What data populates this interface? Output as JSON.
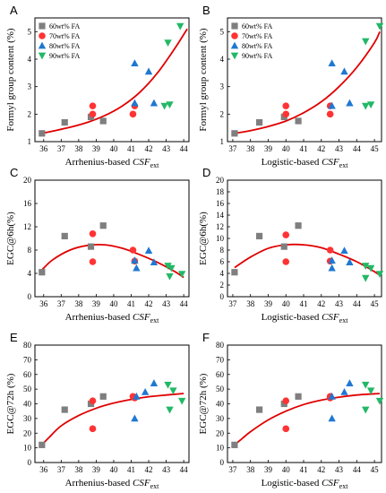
{
  "chart_data": [
    {
      "panel": "A",
      "type": "scatter",
      "ylabel": "Formyl group content (%)",
      "xlabel_main": "Arrhenius-based ",
      "xlabel_italic": "CSF",
      "xlabel_sub": "ext",
      "xlim": [
        35.5,
        44.3
      ],
      "ylim": [
        1,
        5.5
      ],
      "xticks": [
        36,
        37,
        38,
        39,
        40,
        41,
        42,
        43,
        44
      ],
      "yticks": [
        1,
        2,
        3,
        4,
        5
      ],
      "legend": [
        "60wt% FA",
        "70wt% FA",
        "80wt% FA",
        "90wt% FA"
      ],
      "series": [
        {
          "name": "60wt% FA",
          "marker": "square",
          "color": "#7f7f7f",
          "points": [
            [
              35.9,
              1.3
            ],
            [
              37.2,
              1.7
            ],
            [
              38.7,
              1.9
            ],
            [
              39.4,
              1.75
            ]
          ]
        },
        {
          "name": "70wt% FA",
          "marker": "circle",
          "color": "#ff3333",
          "points": [
            [
              38.8,
              2.3
            ],
            [
              38.8,
              2.0
            ],
            [
              41.1,
              2.0
            ],
            [
              41.2,
              2.3
            ]
          ]
        },
        {
          "name": "80wt% FA",
          "marker": "triangle-up",
          "color": "#1f78d1",
          "points": [
            [
              41.2,
              3.85
            ],
            [
              41.2,
              2.4
            ],
            [
              42.0,
              3.55
            ],
            [
              42.3,
              2.4
            ]
          ]
        },
        {
          "name": "90wt% FA",
          "marker": "triangle-down",
          "color": "#22b866",
          "points": [
            [
              43.1,
              4.6
            ],
            [
              43.8,
              5.2
            ],
            [
              42.9,
              2.3
            ],
            [
              43.2,
              2.35
            ]
          ]
        }
      ],
      "fit": {
        "color": "#e00000",
        "x": [
          35.9,
          36.5,
          37.5,
          38.5,
          39.5,
          40.5,
          41.5,
          42.5,
          43.5,
          44.2
        ],
        "y": [
          1.3,
          1.38,
          1.52,
          1.7,
          1.95,
          2.3,
          2.8,
          3.5,
          4.4,
          5.1
        ]
      }
    },
    {
      "panel": "B",
      "type": "scatter",
      "ylabel": "Formyl group content (%)",
      "xlabel_main": "Logistic-based ",
      "xlabel_italic": "CSF",
      "xlabel_sub": "ext",
      "xlim": [
        36.7,
        45.4
      ],
      "ylim": [
        1,
        5.5
      ],
      "xticks": [
        37,
        38,
        39,
        40,
        41,
        42,
        43,
        44,
        45
      ],
      "yticks": [
        1,
        2,
        3,
        4,
        5
      ],
      "legend": [
        "60wt% FA",
        "70wt% FA",
        "80wt% FA",
        "90wt% FA"
      ],
      "series": [
        {
          "name": "60wt% FA",
          "marker": "square",
          "color": "#7f7f7f",
          "points": [
            [
              37.1,
              1.3
            ],
            [
              38.5,
              1.7
            ],
            [
              39.9,
              1.9
            ],
            [
              40.7,
              1.75
            ]
          ]
        },
        {
          "name": "70wt% FA",
          "marker": "circle",
          "color": "#ff3333",
          "points": [
            [
              40.0,
              2.3
            ],
            [
              40.0,
              2.0
            ],
            [
              42.5,
              2.0
            ],
            [
              42.5,
              2.3
            ]
          ]
        },
        {
          "name": "80wt% FA",
          "marker": "triangle-up",
          "color": "#1f78d1",
          "points": [
            [
              42.6,
              3.85
            ],
            [
              42.6,
              2.3
            ],
            [
              43.3,
              3.55
            ],
            [
              43.6,
              2.4
            ]
          ]
        },
        {
          "name": "90wt% FA",
          "marker": "triangle-down",
          "color": "#22b866",
          "points": [
            [
              44.5,
              4.65
            ],
            [
              45.3,
              5.2
            ],
            [
              44.5,
              2.3
            ],
            [
              44.8,
              2.35
            ]
          ]
        }
      ],
      "fit": {
        "color": "#e00000",
        "x": [
          37.1,
          38,
          39,
          40,
          41,
          42,
          43,
          44,
          45,
          45.3
        ],
        "y": [
          1.3,
          1.4,
          1.55,
          1.75,
          2.05,
          2.45,
          3.0,
          3.7,
          4.6,
          5.0
        ]
      }
    },
    {
      "panel": "C",
      "type": "scatter",
      "ylabel": "EGC@6h(%)",
      "xlabel_main": "Arrhenius-based ",
      "xlabel_italic": "CSF",
      "xlabel_sub": "ext",
      "xlim": [
        35.5,
        44.3
      ],
      "ylim": [
        0,
        20
      ],
      "xticks": [
        36,
        37,
        38,
        39,
        40,
        41,
        42,
        43,
        44
      ],
      "yticks": [
        0,
        4,
        8,
        12,
        16,
        20
      ],
      "series": [
        {
          "name": "60wt% FA",
          "marker": "square",
          "color": "#7f7f7f",
          "points": [
            [
              35.9,
              4.2
            ],
            [
              37.2,
              10.4
            ],
            [
              38.7,
              8.6
            ],
            [
              39.4,
              12.2
            ]
          ]
        },
        {
          "name": "70wt% FA",
          "marker": "circle",
          "color": "#ff3333",
          "points": [
            [
              38.8,
              10.8
            ],
            [
              38.8,
              6.0
            ],
            [
              41.1,
              8.0
            ],
            [
              41.2,
              6.1
            ]
          ]
        },
        {
          "name": "80wt% FA",
          "marker": "triangle-up",
          "color": "#1f78d1",
          "points": [
            [
              41.2,
              6.2
            ],
            [
              41.3,
              4.9
            ],
            [
              42.0,
              7.9
            ],
            [
              42.3,
              5.9
            ]
          ]
        },
        {
          "name": "90wt% FA",
          "marker": "triangle-down",
          "color": "#22b866",
          "points": [
            [
              43.1,
              5.3
            ],
            [
              43.3,
              4.9
            ],
            [
              43.2,
              3.5
            ],
            [
              43.9,
              3.9
            ]
          ]
        }
      ],
      "fit": {
        "color": "#e00000",
        "x": [
          35.9,
          36.5,
          37.5,
          38.5,
          39.5,
          40.5,
          41.5,
          42.5,
          43.5,
          44.0
        ],
        "y": [
          4.6,
          6.3,
          8.0,
          8.8,
          8.9,
          8.3,
          7.2,
          5.9,
          4.3,
          3.3
        ]
      }
    },
    {
      "panel": "D",
      "type": "scatter",
      "ylabel": "EGC@6h(%)",
      "xlabel_main": "Logistic-based ",
      "xlabel_italic": "CSF",
      "xlabel_sub": "ext",
      "xlim": [
        36.7,
        45.4
      ],
      "ylim": [
        0,
        20
      ],
      "xticks": [
        37,
        38,
        39,
        40,
        41,
        42,
        43,
        44,
        45
      ],
      "yticks": [
        0,
        2,
        4,
        6,
        8,
        10,
        12,
        14,
        16,
        18,
        20
      ],
      "series": [
        {
          "name": "60wt% FA",
          "marker": "square",
          "color": "#7f7f7f",
          "points": [
            [
              37.1,
              4.2
            ],
            [
              38.5,
              10.4
            ],
            [
              39.9,
              8.6
            ],
            [
              40.7,
              12.2
            ]
          ]
        },
        {
          "name": "70wt% FA",
          "marker": "circle",
          "color": "#ff3333",
          "points": [
            [
              40.0,
              10.6
            ],
            [
              40.0,
              6.0
            ],
            [
              42.5,
              8.0
            ],
            [
              42.5,
              6.1
            ]
          ]
        },
        {
          "name": "80wt% FA",
          "marker": "triangle-up",
          "color": "#1f78d1",
          "points": [
            [
              42.6,
              6.2
            ],
            [
              42.6,
              4.9
            ],
            [
              43.3,
              7.9
            ],
            [
              43.6,
              5.9
            ]
          ]
        },
        {
          "name": "90wt% FA",
          "marker": "triangle-down",
          "color": "#22b866",
          "points": [
            [
              44.5,
              5.3
            ],
            [
              44.8,
              4.9
            ],
            [
              44.5,
              3.2
            ],
            [
              45.3,
              3.9
            ]
          ]
        }
      ],
      "fit": {
        "color": "#e00000",
        "x": [
          37.1,
          38,
          39,
          40,
          41,
          42,
          43,
          44,
          45,
          45.3
        ],
        "y": [
          5.0,
          6.8,
          8.3,
          8.9,
          8.9,
          8.4,
          7.3,
          6.0,
          4.3,
          3.7
        ]
      }
    },
    {
      "panel": "E",
      "type": "scatter",
      "ylabel": "EGC@72h (%)",
      "xlabel_main": "Arrhenius-based ",
      "xlabel_italic": "CSF",
      "xlabel_sub": "ext",
      "xlim": [
        35.5,
        44.3
      ],
      "ylim": [
        0,
        80
      ],
      "xticks": [
        36,
        37,
        38,
        39,
        40,
        41,
        42,
        43,
        44
      ],
      "yticks": [
        0,
        10,
        20,
        30,
        40,
        50,
        60,
        70,
        80
      ],
      "series": [
        {
          "name": "60wt% FA",
          "marker": "square",
          "color": "#7f7f7f",
          "points": [
            [
              35.9,
              12
            ],
            [
              37.2,
              36
            ],
            [
              38.7,
              40
            ],
            [
              39.4,
              45
            ]
          ]
        },
        {
          "name": "70wt% FA",
          "marker": "circle",
          "color": "#ff3333",
          "points": [
            [
              38.8,
              42
            ],
            [
              38.8,
              23
            ],
            [
              41.1,
              45
            ],
            [
              41.2,
              44
            ]
          ]
        },
        {
          "name": "80wt% FA",
          "marker": "triangle-up",
          "color": "#1f78d1",
          "points": [
            [
              41.2,
              30
            ],
            [
              41.8,
              48
            ],
            [
              42.3,
              54
            ],
            [
              41.3,
              45
            ]
          ]
        },
        {
          "name": "90wt% FA",
          "marker": "triangle-down",
          "color": "#22b866",
          "points": [
            [
              43.1,
              53
            ],
            [
              43.4,
              49
            ],
            [
              43.2,
              36
            ],
            [
              43.9,
              42
            ]
          ]
        }
      ],
      "fit": {
        "color": "#e00000",
        "x": [
          35.9,
          36.3,
          37,
          38,
          39,
          40,
          41,
          42,
          43,
          44
        ],
        "y": [
          12,
          17,
          25,
          32,
          37,
          40.5,
          43,
          44.8,
          46,
          47
        ]
      }
    },
    {
      "panel": "F",
      "type": "scatter",
      "ylabel": "EGC@72h (%)",
      "xlabel_main": "Logistic-based ",
      "xlabel_italic": "CSF",
      "xlabel_sub": "ext",
      "xlim": [
        36.7,
        45.4
      ],
      "ylim": [
        0,
        80
      ],
      "xticks": [
        37,
        38,
        39,
        40,
        41,
        42,
        43,
        44,
        45
      ],
      "yticks": [
        0,
        10,
        20,
        30,
        40,
        50,
        60,
        70,
        80
      ],
      "series": [
        {
          "name": "60wt% FA",
          "marker": "square",
          "color": "#7f7f7f",
          "points": [
            [
              37.1,
              12
            ],
            [
              38.5,
              36
            ],
            [
              39.9,
              40
            ],
            [
              40.7,
              45
            ]
          ]
        },
        {
          "name": "70wt% FA",
          "marker": "circle",
          "color": "#ff3333",
          "points": [
            [
              40.0,
              42
            ],
            [
              40.0,
              23
            ],
            [
              42.5,
              45
            ],
            [
              42.5,
              44
            ]
          ]
        },
        {
          "name": "80wt% FA",
          "marker": "triangle-up",
          "color": "#1f78d1",
          "points": [
            [
              42.6,
              30
            ],
            [
              43.3,
              48
            ],
            [
              43.6,
              54
            ],
            [
              42.6,
              45
            ]
          ]
        },
        {
          "name": "90wt% FA",
          "marker": "triangle-down",
          "color": "#22b866",
          "points": [
            [
              44.5,
              53
            ],
            [
              44.8,
              49
            ],
            [
              44.5,
              36
            ],
            [
              45.3,
              42
            ]
          ]
        }
      ],
      "fit": {
        "color": "#e00000",
        "x": [
          37.1,
          37.5,
          38,
          39,
          40,
          41,
          42,
          43,
          44,
          45.3
        ],
        "y": [
          12,
          16,
          21,
          29,
          35,
          39.5,
          42.5,
          44.5,
          46,
          47
        ]
      }
    }
  ]
}
